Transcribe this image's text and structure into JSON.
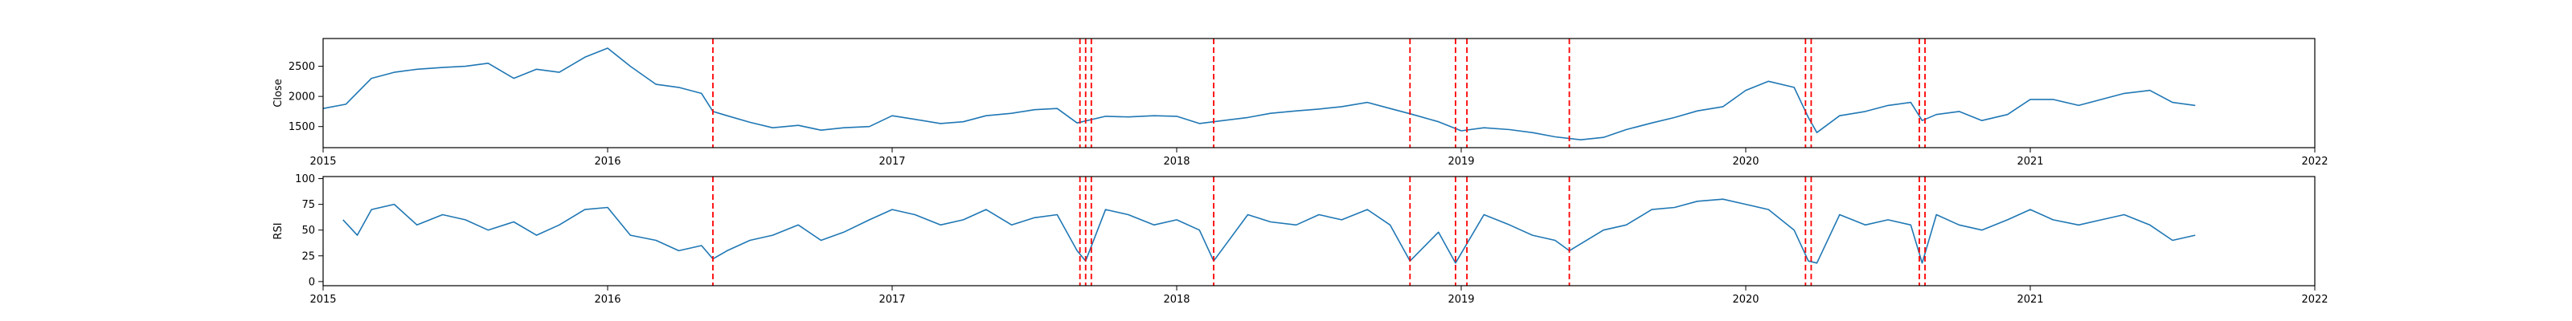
{
  "colors": {
    "series": "#1f77b4",
    "signal": "#ff0000",
    "axis": "#000000"
  },
  "chart_data": [
    {
      "type": "line",
      "xlabel": "",
      "ylabel": "Close",
      "xlim": [
        2015.0,
        2022.0
      ],
      "ylim": [
        1150,
        2960
      ],
      "xticks": [
        {
          "value": 2015,
          "label": "2015"
        },
        {
          "value": 2016,
          "label": "2016"
        },
        {
          "value": 2017,
          "label": "2017"
        },
        {
          "value": 2018,
          "label": "2018"
        },
        {
          "value": 2019,
          "label": "2019"
        },
        {
          "value": 2020,
          "label": "2020"
        },
        {
          "value": 2021,
          "label": "2021"
        },
        {
          "value": 2022,
          "label": "2022"
        }
      ],
      "yticks": [
        {
          "value": 1500,
          "label": "1500"
        },
        {
          "value": 2000,
          "label": "2000"
        },
        {
          "value": 2500,
          "label": "2500"
        }
      ],
      "grid": false,
      "series": [
        {
          "x": [
            2015.0,
            2015.08,
            2015.17,
            2015.25,
            2015.33,
            2015.42,
            2015.5,
            2015.58,
            2015.67,
            2015.75,
            2015.83,
            2015.92,
            2016.0,
            2016.08,
            2016.17,
            2016.25,
            2016.33,
            2016.37,
            2016.42,
            2016.5,
            2016.58,
            2016.67,
            2016.75,
            2016.83,
            2016.92,
            2017.0,
            2017.08,
            2017.17,
            2017.25,
            2017.33,
            2017.42,
            2017.5,
            2017.58,
            2017.65,
            2017.75,
            2017.83,
            2017.92,
            2018.0,
            2018.08,
            2018.13,
            2018.25,
            2018.33,
            2018.42,
            2018.5,
            2018.58,
            2018.67,
            2018.75,
            2018.83,
            2018.92,
            2019.0,
            2019.08,
            2019.17,
            2019.25,
            2019.33,
            2019.42,
            2019.5,
            2019.58,
            2019.67,
            2019.75,
            2019.83,
            2019.92,
            2020.0,
            2020.08,
            2020.17,
            2020.22,
            2020.25,
            2020.33,
            2020.42,
            2020.5,
            2020.58,
            2020.62,
            2020.67,
            2020.75,
            2020.83,
            2020.92,
            2021.0,
            2021.08,
            2021.17,
            2021.25,
            2021.33,
            2021.42,
            2021.5,
            2021.58
          ],
          "y": [
            1800,
            1870,
            2300,
            2400,
            2450,
            2480,
            2500,
            2550,
            2300,
            2450,
            2400,
            2650,
            2800,
            2500,
            2200,
            2150,
            2050,
            1750,
            1680,
            1570,
            1480,
            1520,
            1440,
            1480,
            1500,
            1680,
            1620,
            1550,
            1580,
            1680,
            1720,
            1780,
            1800,
            1560,
            1670,
            1660,
            1680,
            1670,
            1550,
            1580,
            1650,
            1720,
            1760,
            1790,
            1830,
            1900,
            1800,
            1700,
            1580,
            1430,
            1480,
            1450,
            1400,
            1330,
            1280,
            1320,
            1450,
            1560,
            1650,
            1760,
            1830,
            2100,
            2250,
            2150,
            1650,
            1400,
            1680,
            1750,
            1850,
            1900,
            1600,
            1700,
            1750,
            1600,
            1700,
            1950,
            1950,
            1850,
            1950,
            2050,
            2100,
            1900,
            1850
          ]
        }
      ],
      "signals_x": [
        2016.37,
        2017.66,
        2017.68,
        2017.7,
        2018.13,
        2018.82,
        2018.98,
        2019.02,
        2019.38,
        2020.21,
        2020.23,
        2020.61,
        2020.63
      ]
    },
    {
      "type": "line",
      "xlabel": "",
      "ylabel": "RSI",
      "xlim": [
        2015.0,
        2022.0
      ],
      "ylim": [
        -4,
        102
      ],
      "xticks": [
        {
          "value": 2015,
          "label": "2015"
        },
        {
          "value": 2016,
          "label": "2016"
        },
        {
          "value": 2017,
          "label": "2017"
        },
        {
          "value": 2018,
          "label": "2018"
        },
        {
          "value": 2019,
          "label": "2019"
        },
        {
          "value": 2020,
          "label": "2020"
        },
        {
          "value": 2021,
          "label": "2021"
        },
        {
          "value": 2022,
          "label": "2022"
        }
      ],
      "yticks": [
        {
          "value": 0,
          "label": "0"
        },
        {
          "value": 25,
          "label": "25"
        },
        {
          "value": 50,
          "label": "50"
        },
        {
          "value": 75,
          "label": "75"
        },
        {
          "value": 100,
          "label": "100"
        }
      ],
      "grid": false,
      "series": [
        {
          "x": [
            2015.07,
            2015.12,
            2015.17,
            2015.25,
            2015.33,
            2015.42,
            2015.5,
            2015.58,
            2015.67,
            2015.75,
            2015.83,
            2015.92,
            2016.0,
            2016.08,
            2016.17,
            2016.25,
            2016.33,
            2016.37,
            2016.42,
            2016.5,
            2016.58,
            2016.67,
            2016.75,
            2016.83,
            2016.92,
            2017.0,
            2017.08,
            2017.17,
            2017.25,
            2017.33,
            2017.42,
            2017.5,
            2017.58,
            2017.65,
            2017.68,
            2017.75,
            2017.83,
            2017.92,
            2018.0,
            2018.08,
            2018.13,
            2018.25,
            2018.33,
            2018.42,
            2018.5,
            2018.58,
            2018.67,
            2018.75,
            2018.82,
            2018.92,
            2018.98,
            2019.08,
            2019.17,
            2019.25,
            2019.33,
            2019.38,
            2019.5,
            2019.58,
            2019.67,
            2019.75,
            2019.83,
            2019.92,
            2020.0,
            2020.08,
            2020.17,
            2020.22,
            2020.25,
            2020.33,
            2020.42,
            2020.5,
            2020.58,
            2020.62,
            2020.67,
            2020.75,
            2020.83,
            2020.92,
            2021.0,
            2021.08,
            2021.17,
            2021.25,
            2021.33,
            2021.42,
            2021.5,
            2021.58
          ],
          "y": [
            60,
            45,
            70,
            75,
            55,
            65,
            60,
            50,
            58,
            45,
            55,
            70,
            72,
            45,
            40,
            30,
            35,
            22,
            30,
            40,
            45,
            55,
            40,
            48,
            60,
            70,
            65,
            55,
            60,
            70,
            55,
            62,
            65,
            30,
            20,
            70,
            65,
            55,
            60,
            50,
            20,
            65,
            58,
            55,
            65,
            60,
            70,
            55,
            20,
            48,
            18,
            65,
            55,
            45,
            40,
            30,
            50,
            55,
            70,
            72,
            78,
            80,
            75,
            70,
            50,
            20,
            18,
            65,
            55,
            60,
            55,
            18,
            65,
            55,
            50,
            60,
            70,
            60,
            55,
            60,
            65,
            55,
            40,
            45
          ]
        }
      ],
      "signals_x": [
        2016.37,
        2017.66,
        2017.68,
        2017.7,
        2018.13,
        2018.82,
        2018.98,
        2019.02,
        2019.38,
        2020.21,
        2020.23,
        2020.61,
        2020.63
      ]
    }
  ]
}
